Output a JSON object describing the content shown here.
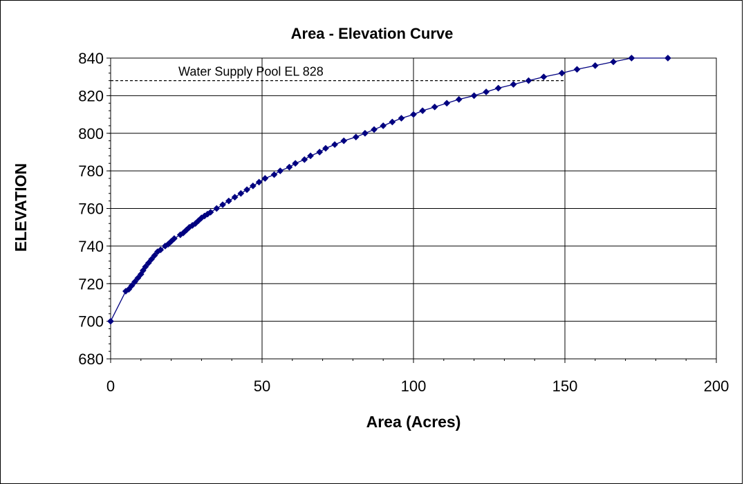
{
  "chart_data": {
    "type": "line",
    "title": "Area - Elevation Curve",
    "xlabel": "Area (Acres)",
    "ylabel": "ELEVATION",
    "xlim": [
      0,
      200
    ],
    "ylim": [
      680,
      840
    ],
    "x_ticks": [
      "0",
      "50",
      "100",
      "150",
      "200"
    ],
    "y_ticks": [
      "680",
      "700",
      "720",
      "740",
      "760",
      "780",
      "800",
      "820",
      "840"
    ],
    "grid": true,
    "legend": "none",
    "series": [
      {
        "color": "#000080",
        "marker": "diamond",
        "points": [
          [
            0,
            700
          ],
          [
            5,
            716
          ],
          [
            6,
            717
          ],
          [
            7,
            719
          ],
          [
            8,
            721
          ],
          [
            9,
            723
          ],
          [
            10,
            725
          ],
          [
            10.7,
            727
          ],
          [
            11.5,
            729
          ],
          [
            12.5,
            731
          ],
          [
            13.5,
            733
          ],
          [
            14.5,
            735
          ],
          [
            15.5,
            737
          ],
          [
            16.5,
            738
          ],
          [
            18,
            740
          ],
          [
            19,
            741
          ],
          [
            20,
            742.5
          ],
          [
            21,
            744
          ],
          [
            23,
            746
          ],
          [
            24,
            747
          ],
          [
            25,
            748.5
          ],
          [
            26,
            750
          ],
          [
            27,
            751
          ],
          [
            28,
            752
          ],
          [
            29,
            753.5
          ],
          [
            30,
            755
          ],
          [
            31,
            756
          ],
          [
            32,
            757
          ],
          [
            33,
            758
          ],
          [
            35,
            760
          ],
          [
            37,
            762
          ],
          [
            39,
            764
          ],
          [
            41,
            766
          ],
          [
            43,
            768
          ],
          [
            45,
            770
          ],
          [
            47,
            772
          ],
          [
            49,
            774
          ],
          [
            51,
            776
          ],
          [
            54,
            778
          ],
          [
            56,
            780
          ],
          [
            59,
            782
          ],
          [
            61,
            784
          ],
          [
            64,
            786
          ],
          [
            66,
            788
          ],
          [
            69,
            790
          ],
          [
            71,
            792
          ],
          [
            74,
            794
          ],
          [
            77,
            796
          ],
          [
            81,
            798
          ],
          [
            84,
            800
          ],
          [
            87,
            802
          ],
          [
            90,
            804
          ],
          [
            93,
            806
          ],
          [
            96,
            808
          ],
          [
            100,
            810
          ],
          [
            103,
            812
          ],
          [
            107,
            814
          ],
          [
            111,
            816
          ],
          [
            115,
            818
          ],
          [
            120,
            820
          ],
          [
            124,
            822
          ],
          [
            128,
            824
          ],
          [
            133,
            826
          ],
          [
            138,
            828
          ],
          [
            143,
            830
          ],
          [
            149,
            832
          ],
          [
            154,
            834
          ],
          [
            160,
            836
          ],
          [
            166,
            838
          ],
          [
            172,
            840
          ],
          [
            178,
            842
          ],
          [
            184,
            840
          ]
        ]
      }
    ],
    "annotation": {
      "text": "Water Supply Pool EL 828",
      "y": 828,
      "x_end": 150,
      "style": "dashed"
    }
  },
  "colors": {
    "series": "#000080",
    "grid": "#000000",
    "background": "#ffffff"
  }
}
